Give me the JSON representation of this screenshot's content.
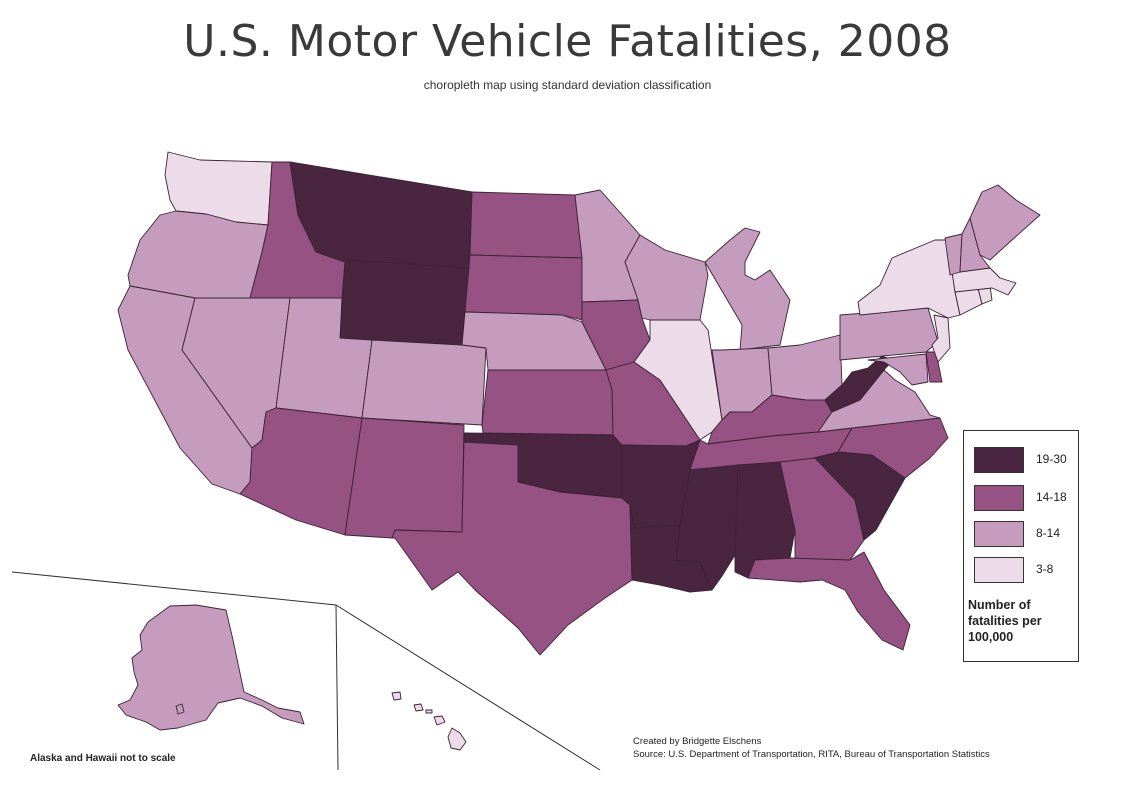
{
  "title": "U.S. Motor Vehicle Fatalities, 2008",
  "subtitle": "choropleth map using standard deviation classification",
  "classes": {
    "c1": "#4a2540",
    "c2": "#955283",
    "c3": "#c59cbd",
    "c4": "#ecdbe8"
  },
  "legend": {
    "items": [
      {
        "label": "19-30",
        "class": "c1"
      },
      {
        "label": "14-18",
        "class": "c2"
      },
      {
        "label": "8-14",
        "class": "c3"
      },
      {
        "label": "3-8",
        "class": "c4"
      }
    ],
    "title": "Number of fatalities per 100,000"
  },
  "inset_note": "Alaska and Hawaii not to scale",
  "credit": {
    "created_by": "Created by Bridgette Elschens",
    "source": "Source: U.S. Department of Transportation, RITA, Bureau of Transportation Statistics"
  },
  "states": {
    "washington": "c4",
    "oregon": "c3",
    "california": "c3",
    "nevada": "c3",
    "idaho": "c2",
    "montana": "c1",
    "wyoming": "c1",
    "utah": "c3",
    "arizona": "c2",
    "colorado": "c3",
    "new-mexico": "c2",
    "north-dakota": "c2",
    "south-dakota": "c2",
    "nebraska": "c3",
    "kansas": "c2",
    "oklahoma": "c1",
    "texas": "c2",
    "minnesota": "c3",
    "iowa": "c2",
    "missouri": "c2",
    "arkansas": "c1",
    "louisiana": "c1",
    "wisconsin": "c3",
    "illinois": "c4",
    "michigan": "c3",
    "indiana": "c3",
    "ohio": "c3",
    "kentucky": "c2",
    "tennessee": "c2",
    "mississippi": "c1",
    "alabama": "c1",
    "georgia": "c2",
    "florida": "c2",
    "south-carolina": "c1",
    "north-carolina": "c2",
    "virginia": "c3",
    "west-virginia": "c1",
    "pennsylvania": "c3",
    "new-york": "c4",
    "maryland": "c3",
    "delaware": "c2",
    "new-jersey": "c4",
    "connecticut": "c4",
    "rhode-island": "c4",
    "massachusetts": "c4",
    "vermont": "c3",
    "new-hampshire": "c3",
    "maine": "c3",
    "alaska": "c3",
    "hawaii": "c4"
  }
}
